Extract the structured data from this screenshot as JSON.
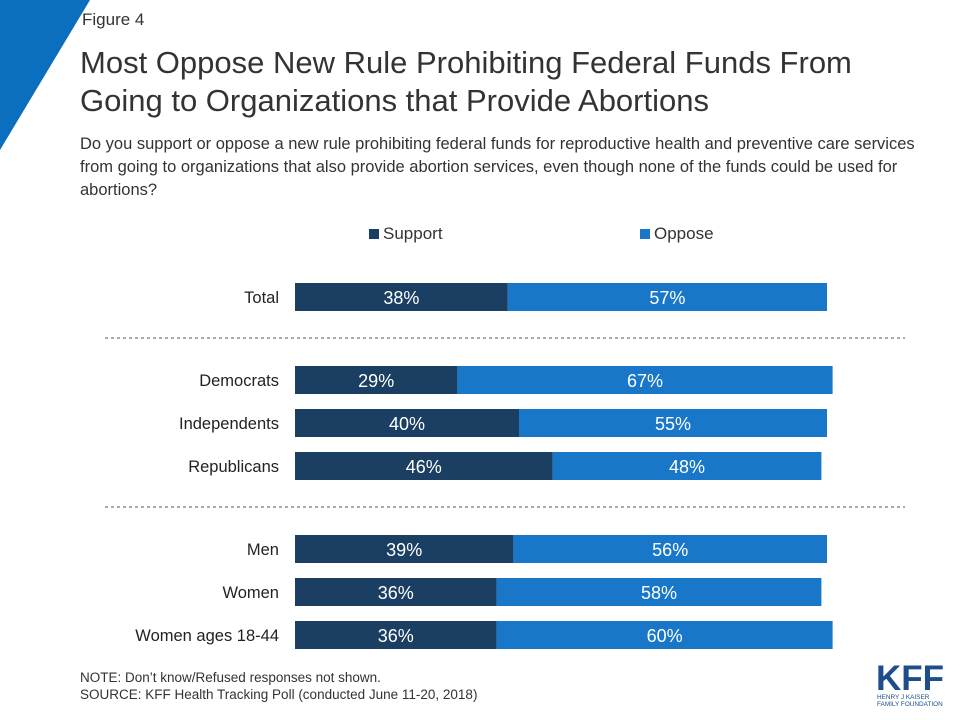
{
  "figure_label": "Figure 4",
  "title": "Most Oppose New Rule Prohibiting Federal Funds From Going to Organizations that Provide Abortions",
  "question": "Do you support or oppose a new rule prohibiting federal funds for reproductive health and preventive care services from going to organizations that also provide abortion services, even though none of the funds could be used for abortions?",
  "colors": {
    "support": "#1b3f63",
    "oppose": "#1877c9",
    "accent": "#0a6fbf",
    "divider": "#555555"
  },
  "chart_data": {
    "type": "bar",
    "orientation": "horizontal",
    "stacked": true,
    "categories": [
      "Total",
      "Democrats",
      "Independents",
      "Republicans",
      "Men",
      "Women",
      "Women ages 18-44"
    ],
    "groups": [
      [
        "Total"
      ],
      [
        "Democrats",
        "Independents",
        "Republicans"
      ],
      [
        "Men",
        "Women",
        "Women ages 18-44"
      ]
    ],
    "series": [
      {
        "name": "Support",
        "values": [
          38,
          29,
          40,
          46,
          39,
          36,
          36
        ],
        "labels": [
          "38%",
          "29%",
          "40%",
          "46%",
          "39%",
          "36%",
          "36%"
        ]
      },
      {
        "name": "Oppose",
        "values": [
          57,
          67,
          55,
          48,
          56,
          58,
          60
        ],
        "labels": [
          "57%",
          "67%",
          "55%",
          "48%",
          "56%",
          "58%",
          "60%"
        ]
      }
    ],
    "xlim": [
      0,
      100
    ],
    "legend_position": "top"
  },
  "footer": {
    "note": "NOTE: Don’t know/Refused responses not shown.",
    "source": "SOURCE: KFF Health Tracking Poll (conducted June 11-20, 2018)"
  },
  "logo": {
    "mark": "KFF",
    "line1": "HENRY J KAISER",
    "line2": "FAMILY FOUNDATION"
  }
}
